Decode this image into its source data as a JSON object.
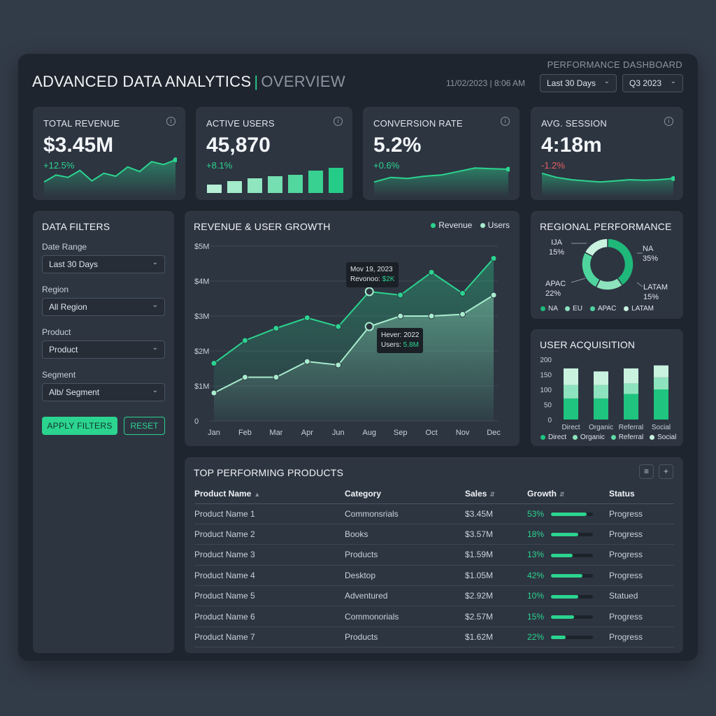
{
  "header": {
    "title_main": "ADVANCED DATA ANALYTICS",
    "title_separator": "|",
    "title_sub": "OVERVIEW",
    "dashboard_label": "PERFORMANCE DASHBOARD",
    "datetime": "11/02/2023 | 8:06 AM",
    "range_select": "Last 30 Days",
    "quarter_select": "Q3 2023"
  },
  "kpis": [
    {
      "label": "TOTAL REVENUE",
      "value": "$3.45M",
      "delta": "+12.5%",
      "trend": "up"
    },
    {
      "label": "ACTIVE USERS",
      "value": "45,870",
      "delta": "+8.1%",
      "trend": "up"
    },
    {
      "label": "CONVERSION RATE",
      "value": "5.2%",
      "delta": "+0.6%",
      "trend": "up"
    },
    {
      "label": "AVG. SESSION",
      "value": "4:18m",
      "delta": "-1.2%",
      "trend": "down"
    }
  ],
  "filters": {
    "title": "DATA FILTERS",
    "date_range_label": "Date Range",
    "date_range_value": "Last 30 Days",
    "region_label": "Region",
    "region_value": "All Region",
    "product_label": "Product",
    "product_value": "Product",
    "segment_label": "Segment",
    "segment_value": "Alb/ Segment",
    "apply_label": "APPLY FILTERS",
    "reset_label": "RESET"
  },
  "revenue_chart": {
    "title": "REVENUE & USER GROWTH",
    "legend_revenue": "Revenue",
    "legend_users": "Users",
    "tooltip1_line1": "Mov 19, 2023",
    "tooltip1_line2_label": "Revonoo: ",
    "tooltip1_line2_value": "$2K",
    "tooltip2_line1": "Hever: 2022",
    "tooltip2_line2_label": "Users: ",
    "tooltip2_line2_value": "5.8M"
  },
  "regional": {
    "title": "REGIONAL PERFORMANCE",
    "label_eu": "IJA",
    "label_eu_pct": "15%",
    "label_na": "NA",
    "label_na_pct": "35%",
    "label_apac": "APAC",
    "label_apac_pct": "22%",
    "label_latam": "LATAM",
    "label_latam_pct": "15%",
    "legend": [
      "NA",
      "EU",
      "APAC",
      "LATAM"
    ]
  },
  "acquisition": {
    "title": "USER ACQUISITION",
    "legend": [
      "Direct",
      "Organic",
      "Referral",
      "Social"
    ]
  },
  "products": {
    "title": "TOP PERFORMING PRODUCTS",
    "columns": [
      "Product Name",
      "Category",
      "Sales",
      "Growth",
      "Status"
    ],
    "rows": [
      {
        "name": "Product Name 1",
        "category": "Commonsrials",
        "sales": "$3.45M",
        "growth": "53%",
        "growth_value": 0.85,
        "status": "Progress"
      },
      {
        "name": "Product Name 2",
        "category": "Books",
        "sales": "$3.57M",
        "growth": "18%",
        "growth_value": 0.65,
        "status": "Progress"
      },
      {
        "name": "Product Name 3",
        "category": "Products",
        "sales": "$1.59M",
        "growth": "13%",
        "growth_value": 0.52,
        "status": "Progress"
      },
      {
        "name": "Product Name 4",
        "category": "Desktop",
        "sales": "$1.05M",
        "growth": "42%",
        "growth_value": 0.75,
        "status": "Progress"
      },
      {
        "name": "Product Name 5",
        "category": "Adventured",
        "sales": "$2.92M",
        "growth": "10%",
        "growth_value": 0.65,
        "status": "Statued"
      },
      {
        "name": "Product Name 6",
        "category": "Commonorials",
        "sales": "$2.57M",
        "growth": "15%",
        "growth_value": 0.55,
        "status": "Progress"
      },
      {
        "name": "Product Name 7",
        "category": "Products",
        "sales": "$1.62M",
        "growth": "22%",
        "growth_value": 0.35,
        "status": "Progress"
      }
    ]
  },
  "chart_data": [
    {
      "type": "line",
      "title": "REVENUE & USER GROWTH",
      "categories": [
        "Jan",
        "Feb",
        "Mar",
        "Apr",
        "Jun",
        "Aug",
        "Sep",
        "Oct",
        "Nov",
        "Dec"
      ],
      "yticks": [
        "0",
        "$1M",
        "$2M",
        "$3M",
        "$4M",
        "$5M"
      ],
      "ylim": [
        0,
        5
      ],
      "series": [
        {
          "name": "Revenue",
          "values": [
            1.65,
            2.3,
            2.65,
            2.95,
            2.7,
            3.7,
            3.6,
            4.25,
            3.65,
            4.65
          ]
        },
        {
          "name": "Users",
          "values": [
            0.8,
            1.25,
            1.25,
            1.7,
            1.6,
            2.7,
            3.0,
            3.0,
            3.05,
            3.6
          ]
        }
      ],
      "colors": {
        "Revenue": "#2bd48f",
        "Users": "#a7eccd"
      }
    },
    {
      "type": "pie",
      "title": "REGIONAL PERFORMANCE",
      "categories": [
        "NA",
        "EU",
        "APAC",
        "LATAM"
      ],
      "values": [
        35,
        15,
        22,
        15
      ],
      "colors": [
        "#1fb87a",
        "#8de3bd",
        "#4fd49e",
        "#c9f2df"
      ]
    },
    {
      "type": "bar",
      "title": "USER ACQUISITION",
      "categories": [
        "Direct",
        "Organic",
        "Referral",
        "Social"
      ],
      "yticks": [
        "0",
        "50",
        "100",
        "150",
        "200"
      ],
      "ylim": [
        0,
        200
      ],
      "series": [
        {
          "name": "Direct",
          "values": [
            70,
            70,
            85,
            100
          ]
        },
        {
          "name": "Organic",
          "values": [
            45,
            45,
            35,
            40
          ]
        },
        {
          "name": "Referral",
          "values": [
            0,
            0,
            0,
            0
          ]
        },
        {
          "name": "Social",
          "values": [
            55,
            45,
            50,
            40
          ]
        }
      ],
      "colors": [
        "#1fc47f",
        "#8de3bd",
        "#5fd9a6",
        "#c9f2df"
      ]
    }
  ],
  "sparklines": {
    "revenue": [
      20,
      32,
      28,
      40,
      22,
      35,
      30,
      46,
      38,
      55,
      50,
      58
    ],
    "users": [
      12,
      17,
      21,
      24,
      26,
      32,
      36,
      41
    ],
    "conversion": [
      20,
      28,
      26,
      30,
      32,
      38,
      44,
      43,
      42
    ],
    "session": [
      35,
      28,
      24,
      22,
      20,
      22,
      24,
      23,
      24,
      26
    ]
  }
}
